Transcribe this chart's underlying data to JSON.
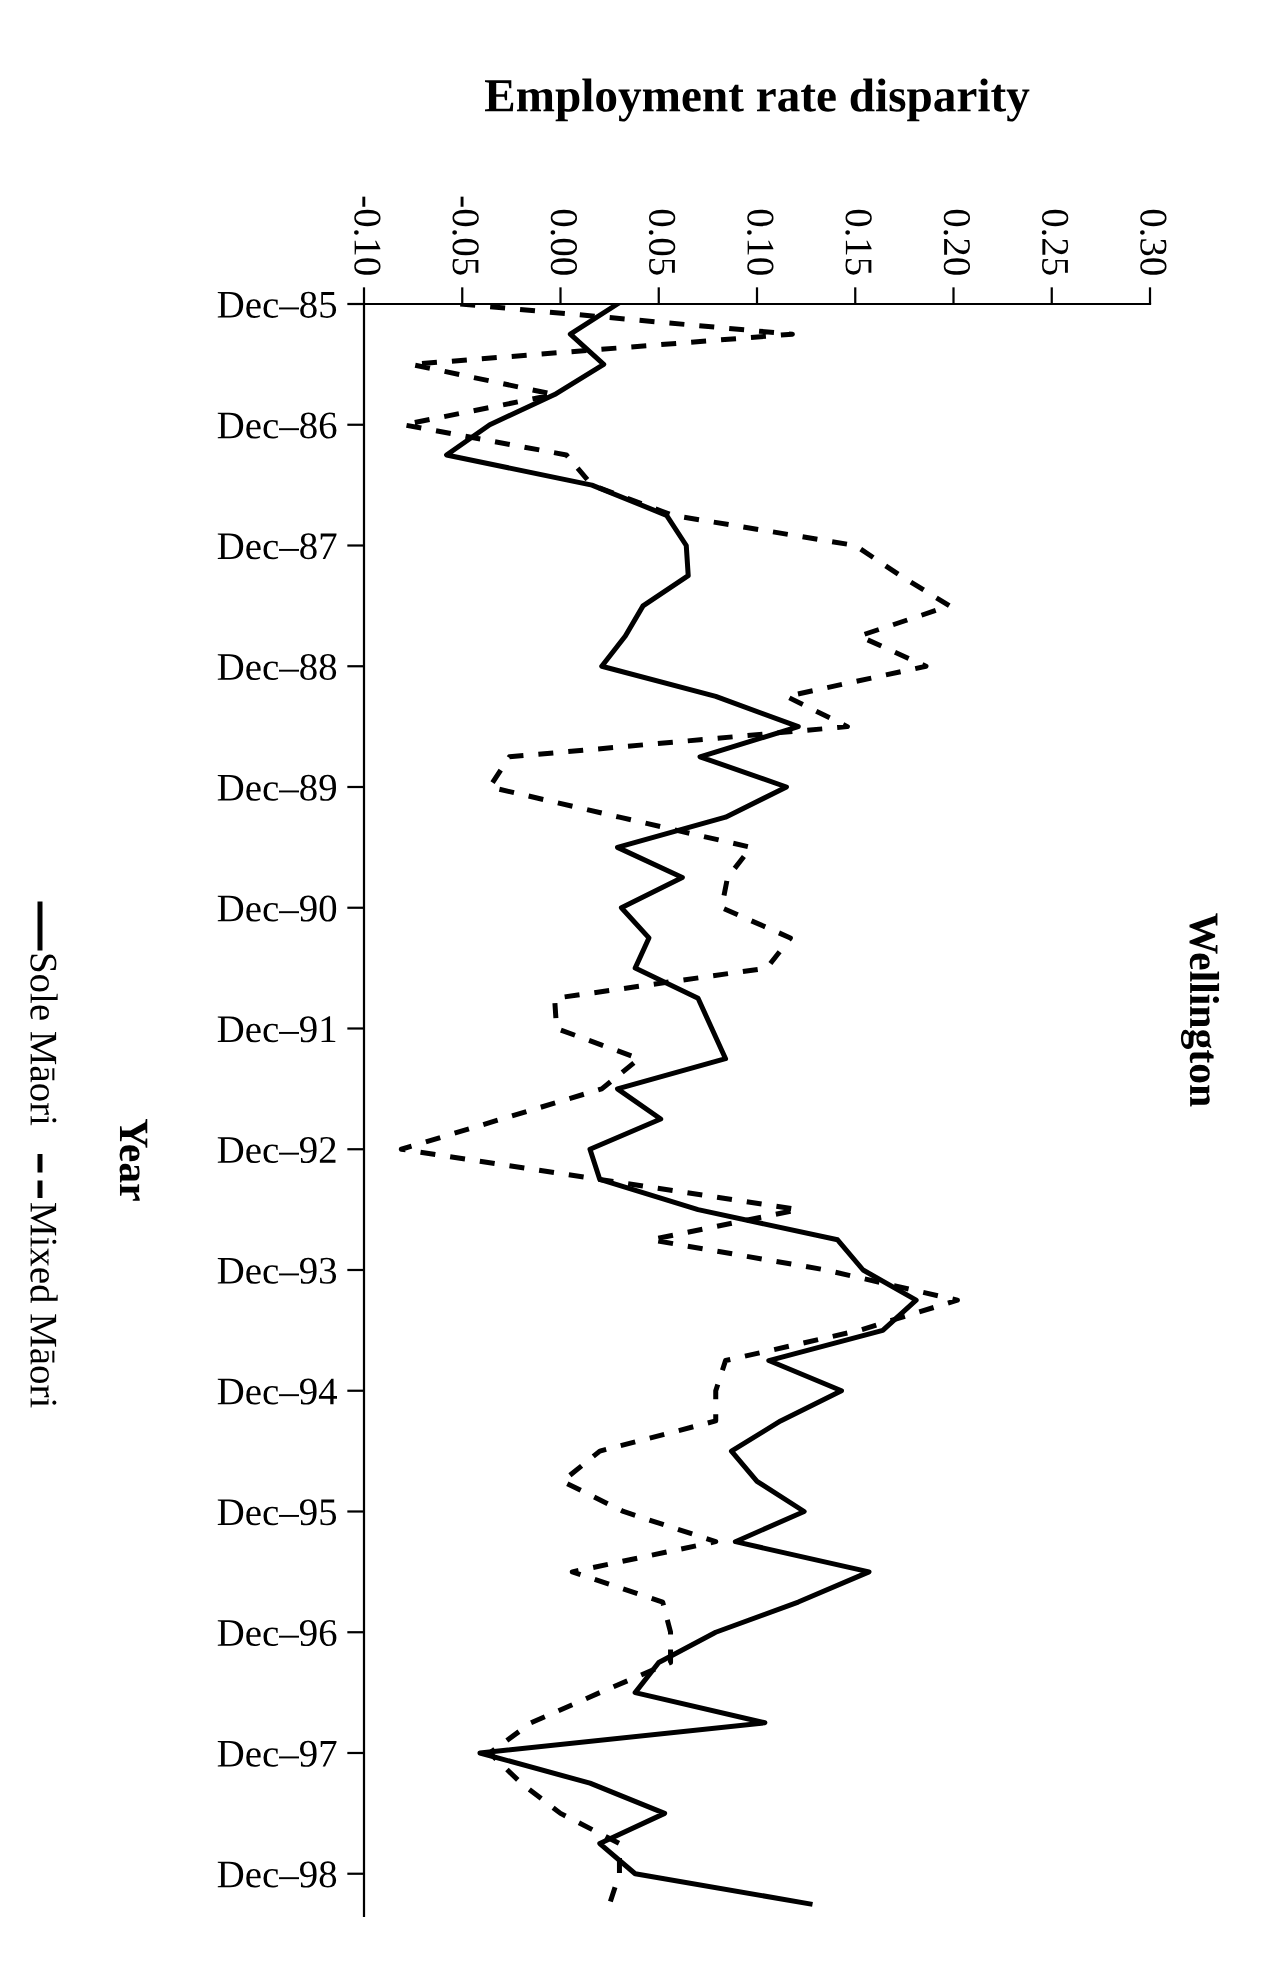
{
  "chart_data": {
    "type": "line",
    "orientation": "horizontal",
    "title": "Wellington",
    "ylabel": "Year",
    "xlabel": "Employment rate disparity",
    "categories": [
      "Dec–85",
      null,
      null,
      null,
      "Dec–86",
      null,
      null,
      null,
      "Dec–87",
      null,
      null,
      null,
      "Dec–88",
      null,
      null,
      null,
      "Dec–89",
      null,
      null,
      null,
      "Dec–90",
      null,
      null,
      null,
      "Dec–91",
      null,
      null,
      null,
      "Dec–92",
      null,
      null,
      null,
      "Dec–93",
      null,
      null,
      null,
      "Dec–94",
      null,
      null,
      null,
      "Dec–95",
      null,
      null,
      null,
      "Dec–96",
      null,
      null,
      null,
      "Dec–97",
      null,
      null,
      null,
      "Dec–98",
      null
    ],
    "xlim": [
      -0.1,
      0.3
    ],
    "xticks": [
      {
        "value": -0.1,
        "label": "-0.10"
      },
      {
        "value": -0.05,
        "label": "-0.05"
      },
      {
        "value": 0.0,
        "label": "0.00"
      },
      {
        "value": 0.05,
        "label": "0.05"
      },
      {
        "value": 0.1,
        "label": "0.10"
      },
      {
        "value": 0.15,
        "label": "0.15"
      },
      {
        "value": 0.2,
        "label": "0.20"
      },
      {
        "value": 0.25,
        "label": "0.25"
      },
      {
        "value": 0.3,
        "label": "0.30"
      }
    ],
    "legend": "left",
    "series": [
      {
        "name": "Sole Māori",
        "color": "#000000",
        "line_style": "solid",
        "values": [
          0.029,
          0.005,
          0.022,
          -0.003,
          -0.036,
          -0.058,
          0.016,
          0.054,
          0.064,
          0.065,
          0.042,
          0.033,
          0.021,
          0.079,
          0.121,
          0.071,
          0.115,
          0.084,
          0.029,
          0.062,
          0.031,
          0.045,
          0.038,
          0.07,
          0.077,
          0.084,
          0.029,
          0.051,
          0.015,
          0.02,
          0.07,
          0.141,
          0.154,
          0.181,
          0.164,
          0.106,
          0.143,
          0.112,
          0.087,
          0.1,
          0.124,
          0.089,
          0.157,
          0.121,
          0.079,
          0.05,
          0.038,
          0.104,
          -0.041,
          0.015,
          0.053,
          0.02,
          0.038,
          0.127
        ]
      },
      {
        "name": "Mixed Māori",
        "color": "#000000",
        "line_style": "dashed",
        "values": [
          -0.051,
          0.118,
          -0.076,
          -0.003,
          -0.08,
          0.003,
          0.016,
          0.057,
          0.15,
          0.173,
          0.198,
          0.152,
          0.186,
          0.115,
          0.146,
          -0.026,
          -0.036,
          0.03,
          0.097,
          0.085,
          0.082,
          0.117,
          0.105,
          -0.003,
          -0.002,
          0.04,
          0.021,
          -0.03,
          -0.081,
          0.02,
          0.121,
          0.046,
          0.135,
          0.202,
          0.152,
          0.084,
          0.079,
          0.079,
          0.02,
          0.001,
          0.032,
          0.079,
          0.006,
          0.052,
          0.056,
          0.056,
          0.02,
          -0.015,
          -0.036,
          -0.02,
          0.0,
          0.03,
          0.03,
          0.025
        ]
      }
    ]
  }
}
